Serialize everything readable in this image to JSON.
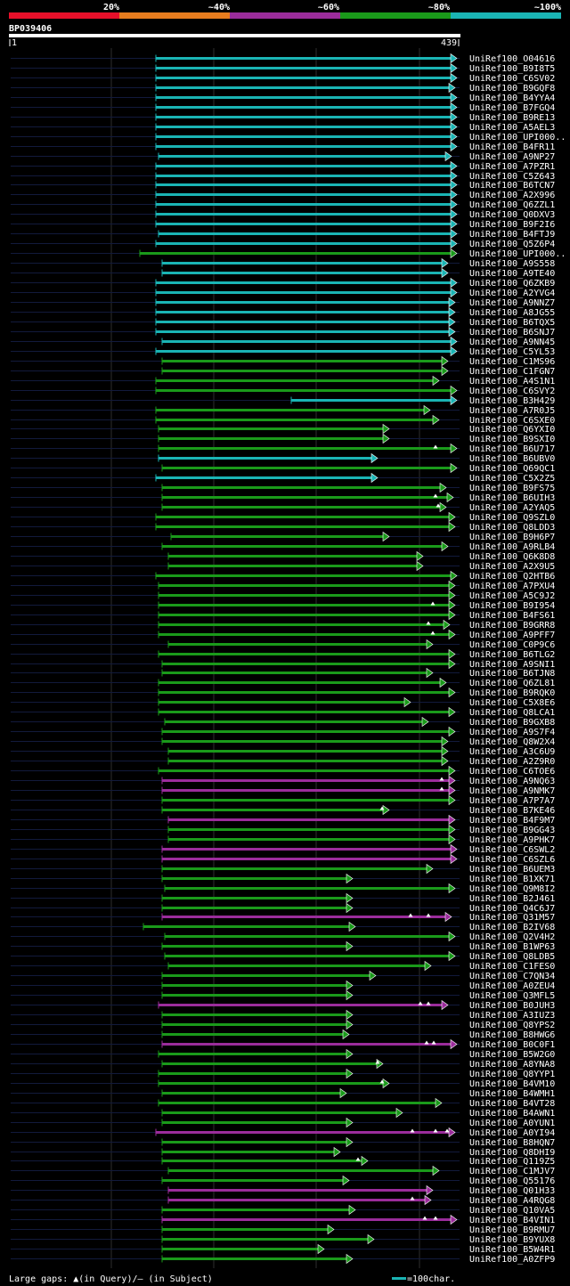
{
  "chart_data": {
    "type": "alignment-overview",
    "query_id": "BP039406",
    "query_length": 439,
    "ruler": {
      "start": "1",
      "end": "439"
    },
    "identity_scale": {
      "labels": [
        "20%",
        "~40%",
        "~60%",
        "~80%",
        "~100%"
      ],
      "colors": [
        "#e8102a",
        "#e87d1e",
        "#9b2c9b",
        "#1a9a1a",
        "#1ab4b4"
      ]
    },
    "legend": {
      "gaps_text": "Large gaps: ▲(in Query)/– (in Subject)",
      "scale_text": "=100char."
    },
    "hits": [
      {
        "id": "UniRef100_O04616",
        "c": 4,
        "s": 175,
        "e": 513
      },
      {
        "id": "UniRef100_B9I8T5",
        "c": 4,
        "s": 175,
        "e": 513
      },
      {
        "id": "UniRef100_C6SV02",
        "c": 4,
        "s": 175,
        "e": 513
      },
      {
        "id": "UniRef100_B9GQF8",
        "c": 4,
        "s": 175,
        "e": 511
      },
      {
        "id": "UniRef100_B4YYA4",
        "c": 4,
        "s": 175,
        "e": 513
      },
      {
        "id": "UniRef100_B7FGQ4",
        "c": 4,
        "s": 175,
        "e": 513
      },
      {
        "id": "UniRef100_B9RE13",
        "c": 4,
        "s": 175,
        "e": 513
      },
      {
        "id": "UniRef100_A5AEL3",
        "c": 4,
        "s": 175,
        "e": 513
      },
      {
        "id": "UniRef100_UPI000..",
        "c": 4,
        "s": 175,
        "e": 513
      },
      {
        "id": "UniRef100_B4FR11",
        "c": 4,
        "s": 175,
        "e": 513
      },
      {
        "id": "UniRef100_A9NP27",
        "c": 4,
        "s": 178,
        "e": 507
      },
      {
        "id": "UniRef100_A7PZR1",
        "c": 4,
        "s": 175,
        "e": 513
      },
      {
        "id": "UniRef100_C5Z643",
        "c": 4,
        "s": 175,
        "e": 513
      },
      {
        "id": "UniRef100_B6TCN7",
        "c": 4,
        "s": 175,
        "e": 513
      },
      {
        "id": "UniRef100_A2X996",
        "c": 4,
        "s": 175,
        "e": 513
      },
      {
        "id": "UniRef100_Q6ZZL1",
        "c": 4,
        "s": 175,
        "e": 513
      },
      {
        "id": "UniRef100_Q0DXV3",
        "c": 4,
        "s": 175,
        "e": 513
      },
      {
        "id": "UniRef100_B9F2I6",
        "c": 4,
        "s": 175,
        "e": 513
      },
      {
        "id": "UniRef100_B4FTJ9",
        "c": 4,
        "s": 178,
        "e": 513
      },
      {
        "id": "UniRef100_Q5Z6P4",
        "c": 4,
        "s": 175,
        "e": 513
      },
      {
        "id": "UniRef100_UPI000..",
        "c": 3,
        "s": 157,
        "e": 513
      },
      {
        "id": "UniRef100_A9S558",
        "c": 4,
        "s": 182,
        "e": 503
      },
      {
        "id": "UniRef100_A9TE40",
        "c": 4,
        "s": 182,
        "e": 503
      },
      {
        "id": "UniRef100_Q6ZKB9",
        "c": 4,
        "s": 175,
        "e": 513
      },
      {
        "id": "UniRef100_A2YVG4",
        "c": 4,
        "s": 175,
        "e": 513
      },
      {
        "id": "UniRef100_A9NNZ7",
        "c": 4,
        "s": 175,
        "e": 511
      },
      {
        "id": "UniRef100_A8JG55",
        "c": 4,
        "s": 175,
        "e": 511
      },
      {
        "id": "UniRef100_B6TQX5",
        "c": 4,
        "s": 175,
        "e": 511
      },
      {
        "id": "UniRef100_B6SNJ7",
        "c": 4,
        "s": 175,
        "e": 511
      },
      {
        "id": "UniRef100_A9NN45",
        "c": 4,
        "s": 182,
        "e": 513
      },
      {
        "id": "UniRef100_C5YL53",
        "c": 4,
        "s": 175,
        "e": 513
      },
      {
        "id": "UniRef100_C1MS96",
        "c": 3,
        "s": 182,
        "e": 503
      },
      {
        "id": "UniRef100_C1FGN7",
        "c": 3,
        "s": 182,
        "e": 503
      },
      {
        "id": "UniRef100_A4S1N1",
        "c": 3,
        "s": 175,
        "e": 493
      },
      {
        "id": "UniRef100_C6SVY2",
        "c": 3,
        "s": 175,
        "e": 513
      },
      {
        "id": "UniRef100_B3H429",
        "c": 4,
        "s": 327,
        "e": 513
      },
      {
        "id": "UniRef100_A7R0J5",
        "c": 3,
        "s": 175,
        "e": 483
      },
      {
        "id": "UniRef100_C6SXE0",
        "c": 3,
        "s": 175,
        "e": 493
      },
      {
        "id": "UniRef100_Q6YXI0",
        "c": 3,
        "s": 178,
        "e": 437
      },
      {
        "id": "UniRef100_B9SXI0",
        "c": 3,
        "s": 178,
        "e": 437
      },
      {
        "id": "UniRef100_B6U717",
        "c": 3,
        "s": 178,
        "e": 513,
        "m": [
          489
        ]
      },
      {
        "id": "UniRef100_B6UBV0",
        "c": 4,
        "s": 178,
        "e": 424
      },
      {
        "id": "UniRef100_Q69QC1",
        "c": 3,
        "s": 182,
        "e": 513
      },
      {
        "id": "UniRef100_C5X2Z5",
        "c": 4,
        "s": 175,
        "e": 424
      },
      {
        "id": "UniRef100_B9FS75",
        "c": 3,
        "s": 182,
        "e": 501
      },
      {
        "id": "UniRef100_B6UIH3",
        "c": 3,
        "s": 182,
        "e": 509,
        "m": [
          489
        ]
      },
      {
        "id": "UniRef100_A2YAQ5",
        "c": 3,
        "s": 182,
        "e": 501,
        "m": [
          492
        ]
      },
      {
        "id": "UniRef100_Q9SZL0",
        "c": 3,
        "s": 175,
        "e": 511
      },
      {
        "id": "UniRef100_Q8LDD3",
        "c": 3,
        "s": 175,
        "e": 511
      },
      {
        "id": "UniRef100_B9H6P7",
        "c": 3,
        "s": 192,
        "e": 437
      },
      {
        "id": "UniRef100_A9RLB4",
        "c": 3,
        "s": 182,
        "e": 503
      },
      {
        "id": "UniRef100_Q6K8D8",
        "c": 3,
        "s": 189,
        "e": 475
      },
      {
        "id": "UniRef100_A2X9U5",
        "c": 3,
        "s": 189,
        "e": 475
      },
      {
        "id": "UniRef100_Q2HTB6",
        "c": 3,
        "s": 175,
        "e": 513
      },
      {
        "id": "UniRef100_A7PXU4",
        "c": 3,
        "s": 178,
        "e": 511
      },
      {
        "id": "UniRef100_A5C9J2",
        "c": 3,
        "s": 178,
        "e": 511
      },
      {
        "id": "UniRef100_B9I954",
        "c": 3,
        "s": 178,
        "e": 511,
        "m": [
          486
        ]
      },
      {
        "id": "UniRef100_B4FS61",
        "c": 3,
        "s": 178,
        "e": 511
      },
      {
        "id": "UniRef100_B9GRR8",
        "c": 3,
        "s": 178,
        "e": 505,
        "m": [
          481
        ]
      },
      {
        "id": "UniRef100_A9PFF7",
        "c": 3,
        "s": 178,
        "e": 511,
        "m": [
          486
        ]
      },
      {
        "id": "UniRef100_C0P9C6",
        "c": 3,
        "s": 189,
        "e": 486
      },
      {
        "id": "UniRef100_B6TLG2",
        "c": 3,
        "s": 178,
        "e": 511
      },
      {
        "id": "UniRef100_A9SNI1",
        "c": 3,
        "s": 182,
        "e": 511
      },
      {
        "id": "UniRef100_B6TJN8",
        "c": 3,
        "s": 182,
        "e": 486
      },
      {
        "id": "UniRef100_Q6ZL81",
        "c": 3,
        "s": 178,
        "e": 501
      },
      {
        "id": "UniRef100_B9RQK0",
        "c": 3,
        "s": 178,
        "e": 511
      },
      {
        "id": "UniRef100_C5X8E6",
        "c": 3,
        "s": 178,
        "e": 461
      },
      {
        "id": "UniRef100_Q8LCA1",
        "c": 3,
        "s": 178,
        "e": 511
      },
      {
        "id": "UniRef100_B9GXB8",
        "c": 3,
        "s": 185,
        "e": 481
      },
      {
        "id": "UniRef100_A9S7F4",
        "c": 3,
        "s": 182,
        "e": 511
      },
      {
        "id": "UniRef100_Q8W2X4",
        "c": 3,
        "s": 182,
        "e": 503
      },
      {
        "id": "UniRef100_A3C6U9",
        "c": 3,
        "s": 189,
        "e": 503
      },
      {
        "id": "UniRef100_A2Z9R0",
        "c": 3,
        "s": 189,
        "e": 503
      },
      {
        "id": "UniRef100_C6TOE6",
        "c": 3,
        "s": 178,
        "e": 511
      },
      {
        "id": "UniRef100_A9NQ63",
        "c": 2,
        "s": 182,
        "e": 511,
        "m": [
          496
        ]
      },
      {
        "id": "UniRef100_A9NMK7",
        "c": 2,
        "s": 182,
        "e": 511,
        "m": [
          496
        ]
      },
      {
        "id": "UniRef100_A7P7A7",
        "c": 3,
        "s": 182,
        "e": 511
      },
      {
        "id": "UniRef100_B7KE46",
        "c": 3,
        "s": 182,
        "e": 437,
        "m": [
          429
        ]
      },
      {
        "id": "UniRef100_B4F9M7",
        "c": 2,
        "s": 189,
        "e": 511
      },
      {
        "id": "UniRef100_B9GG43",
        "c": 3,
        "s": 189,
        "e": 511
      },
      {
        "id": "UniRef100_A9PHK7",
        "c": 3,
        "s": 189,
        "e": 511
      },
      {
        "id": "UniRef100_C6SWL2",
        "c": 2,
        "s": 182,
        "e": 513
      },
      {
        "id": "UniRef100_C6SZL6",
        "c": 2,
        "s": 182,
        "e": 513
      },
      {
        "id": "UniRef100_B6UEM3",
        "c": 3,
        "s": 182,
        "e": 486
      },
      {
        "id": "UniRef100_B1XK71",
        "c": 3,
        "s": 182,
        "e": 396
      },
      {
        "id": "UniRef100_Q9M8I2",
        "c": 3,
        "s": 185,
        "e": 511
      },
      {
        "id": "UniRef100_B2J461",
        "c": 3,
        "s": 182,
        "e": 396
      },
      {
        "id": "UniRef100_Q4C6J7",
        "c": 3,
        "s": 182,
        "e": 396
      },
      {
        "id": "UniRef100_Q31M57",
        "c": 2,
        "s": 182,
        "e": 507,
        "m": [
          461,
          481
        ]
      },
      {
        "id": "UniRef100_B2IV68",
        "c": 3,
        "s": 161,
        "e": 399
      },
      {
        "id": "UniRef100_Q2V4H2",
        "c": 3,
        "s": 185,
        "e": 511
      },
      {
        "id": "UniRef100_B1WP63",
        "c": 3,
        "s": 182,
        "e": 396
      },
      {
        "id": "UniRef100_Q8LDB5",
        "c": 3,
        "s": 185,
        "e": 511
      },
      {
        "id": "UniRef100_C1FES0",
        "c": 3,
        "s": 189,
        "e": 484
      },
      {
        "id": "UniRef100_C7QN34",
        "c": 3,
        "s": 182,
        "e": 422
      },
      {
        "id": "UniRef100_A0ZEU4",
        "c": 3,
        "s": 182,
        "e": 396
      },
      {
        "id": "UniRef100_Q3MFL5",
        "c": 3,
        "s": 182,
        "e": 396
      },
      {
        "id": "UniRef100_B0JUH3",
        "c": 2,
        "s": 178,
        "e": 503,
        "m": [
          472,
          481
        ]
      },
      {
        "id": "UniRef100_A3IUZ3",
        "c": 3,
        "s": 182,
        "e": 396
      },
      {
        "id": "UniRef100_Q8YPS2",
        "c": 3,
        "s": 182,
        "e": 396
      },
      {
        "id": "UniRef100_B8HWG6",
        "c": 3,
        "s": 182,
        "e": 392
      },
      {
        "id": "UniRef100_B0C0F1",
        "c": 2,
        "s": 182,
        "e": 513,
        "m": [
          479,
          487
        ]
      },
      {
        "id": "UniRef100_B5W2G0",
        "c": 3,
        "s": 178,
        "e": 396
      },
      {
        "id": "UniRef100_A8YNA8",
        "c": 3,
        "s": 182,
        "e": 430,
        "m": [
          424
        ]
      },
      {
        "id": "UniRef100_Q8YYP1",
        "c": 3,
        "s": 178,
        "e": 396
      },
      {
        "id": "UniRef100_B4VM10",
        "c": 3,
        "s": 178,
        "e": 437,
        "m": [
          429
        ]
      },
      {
        "id": "UniRef100_B4WMH1",
        "c": 3,
        "s": 182,
        "e": 389
      },
      {
        "id": "UniRef100_B4VT28",
        "c": 3,
        "s": 178,
        "e": 496
      },
      {
        "id": "UniRef100_B4AWN1",
        "c": 3,
        "s": 182,
        "e": 452
      },
      {
        "id": "UniRef100_A0YUN1",
        "c": 3,
        "s": 182,
        "e": 396
      },
      {
        "id": "UniRef100_A0YI94",
        "c": 2,
        "s": 175,
        "e": 511,
        "m": [
          463,
          489,
          502
        ]
      },
      {
        "id": "UniRef100_B8HQN7",
        "c": 3,
        "s": 182,
        "e": 396
      },
      {
        "id": "UniRef100_Q8DHI9",
        "c": 3,
        "s": 182,
        "e": 382
      },
      {
        "id": "UniRef100_Q119Z5",
        "c": 3,
        "s": 182,
        "e": 413,
        "m": [
          402
        ]
      },
      {
        "id": "UniRef100_C1MJV7",
        "c": 3,
        "s": 189,
        "e": 493
      },
      {
        "id": "UniRef100_Q55176",
        "c": 3,
        "s": 182,
        "e": 392
      },
      {
        "id": "UniRef100_Q01H33",
        "c": 2,
        "s": 189,
        "e": 486
      },
      {
        "id": "UniRef100_A4RQG8",
        "c": 2,
        "s": 189,
        "e": 484,
        "m": [
          463
        ]
      },
      {
        "id": "UniRef100_Q10VA5",
        "c": 3,
        "s": 182,
        "e": 399
      },
      {
        "id": "UniRef100_B4VIN1",
        "c": 2,
        "s": 182,
        "e": 513,
        "m": [
          477,
          489
        ]
      },
      {
        "id": "UniRef100_B9RMU7",
        "c": 3,
        "s": 182,
        "e": 375
      },
      {
        "id": "UniRef100_B9YUX8",
        "c": 3,
        "s": 182,
        "e": 420
      },
      {
        "id": "UniRef100_B5W4R1",
        "c": 3,
        "s": 182,
        "e": 364
      },
      {
        "id": "UniRef100_A0ZFP9",
        "c": 3,
        "s": 182,
        "e": 396
      }
    ]
  }
}
